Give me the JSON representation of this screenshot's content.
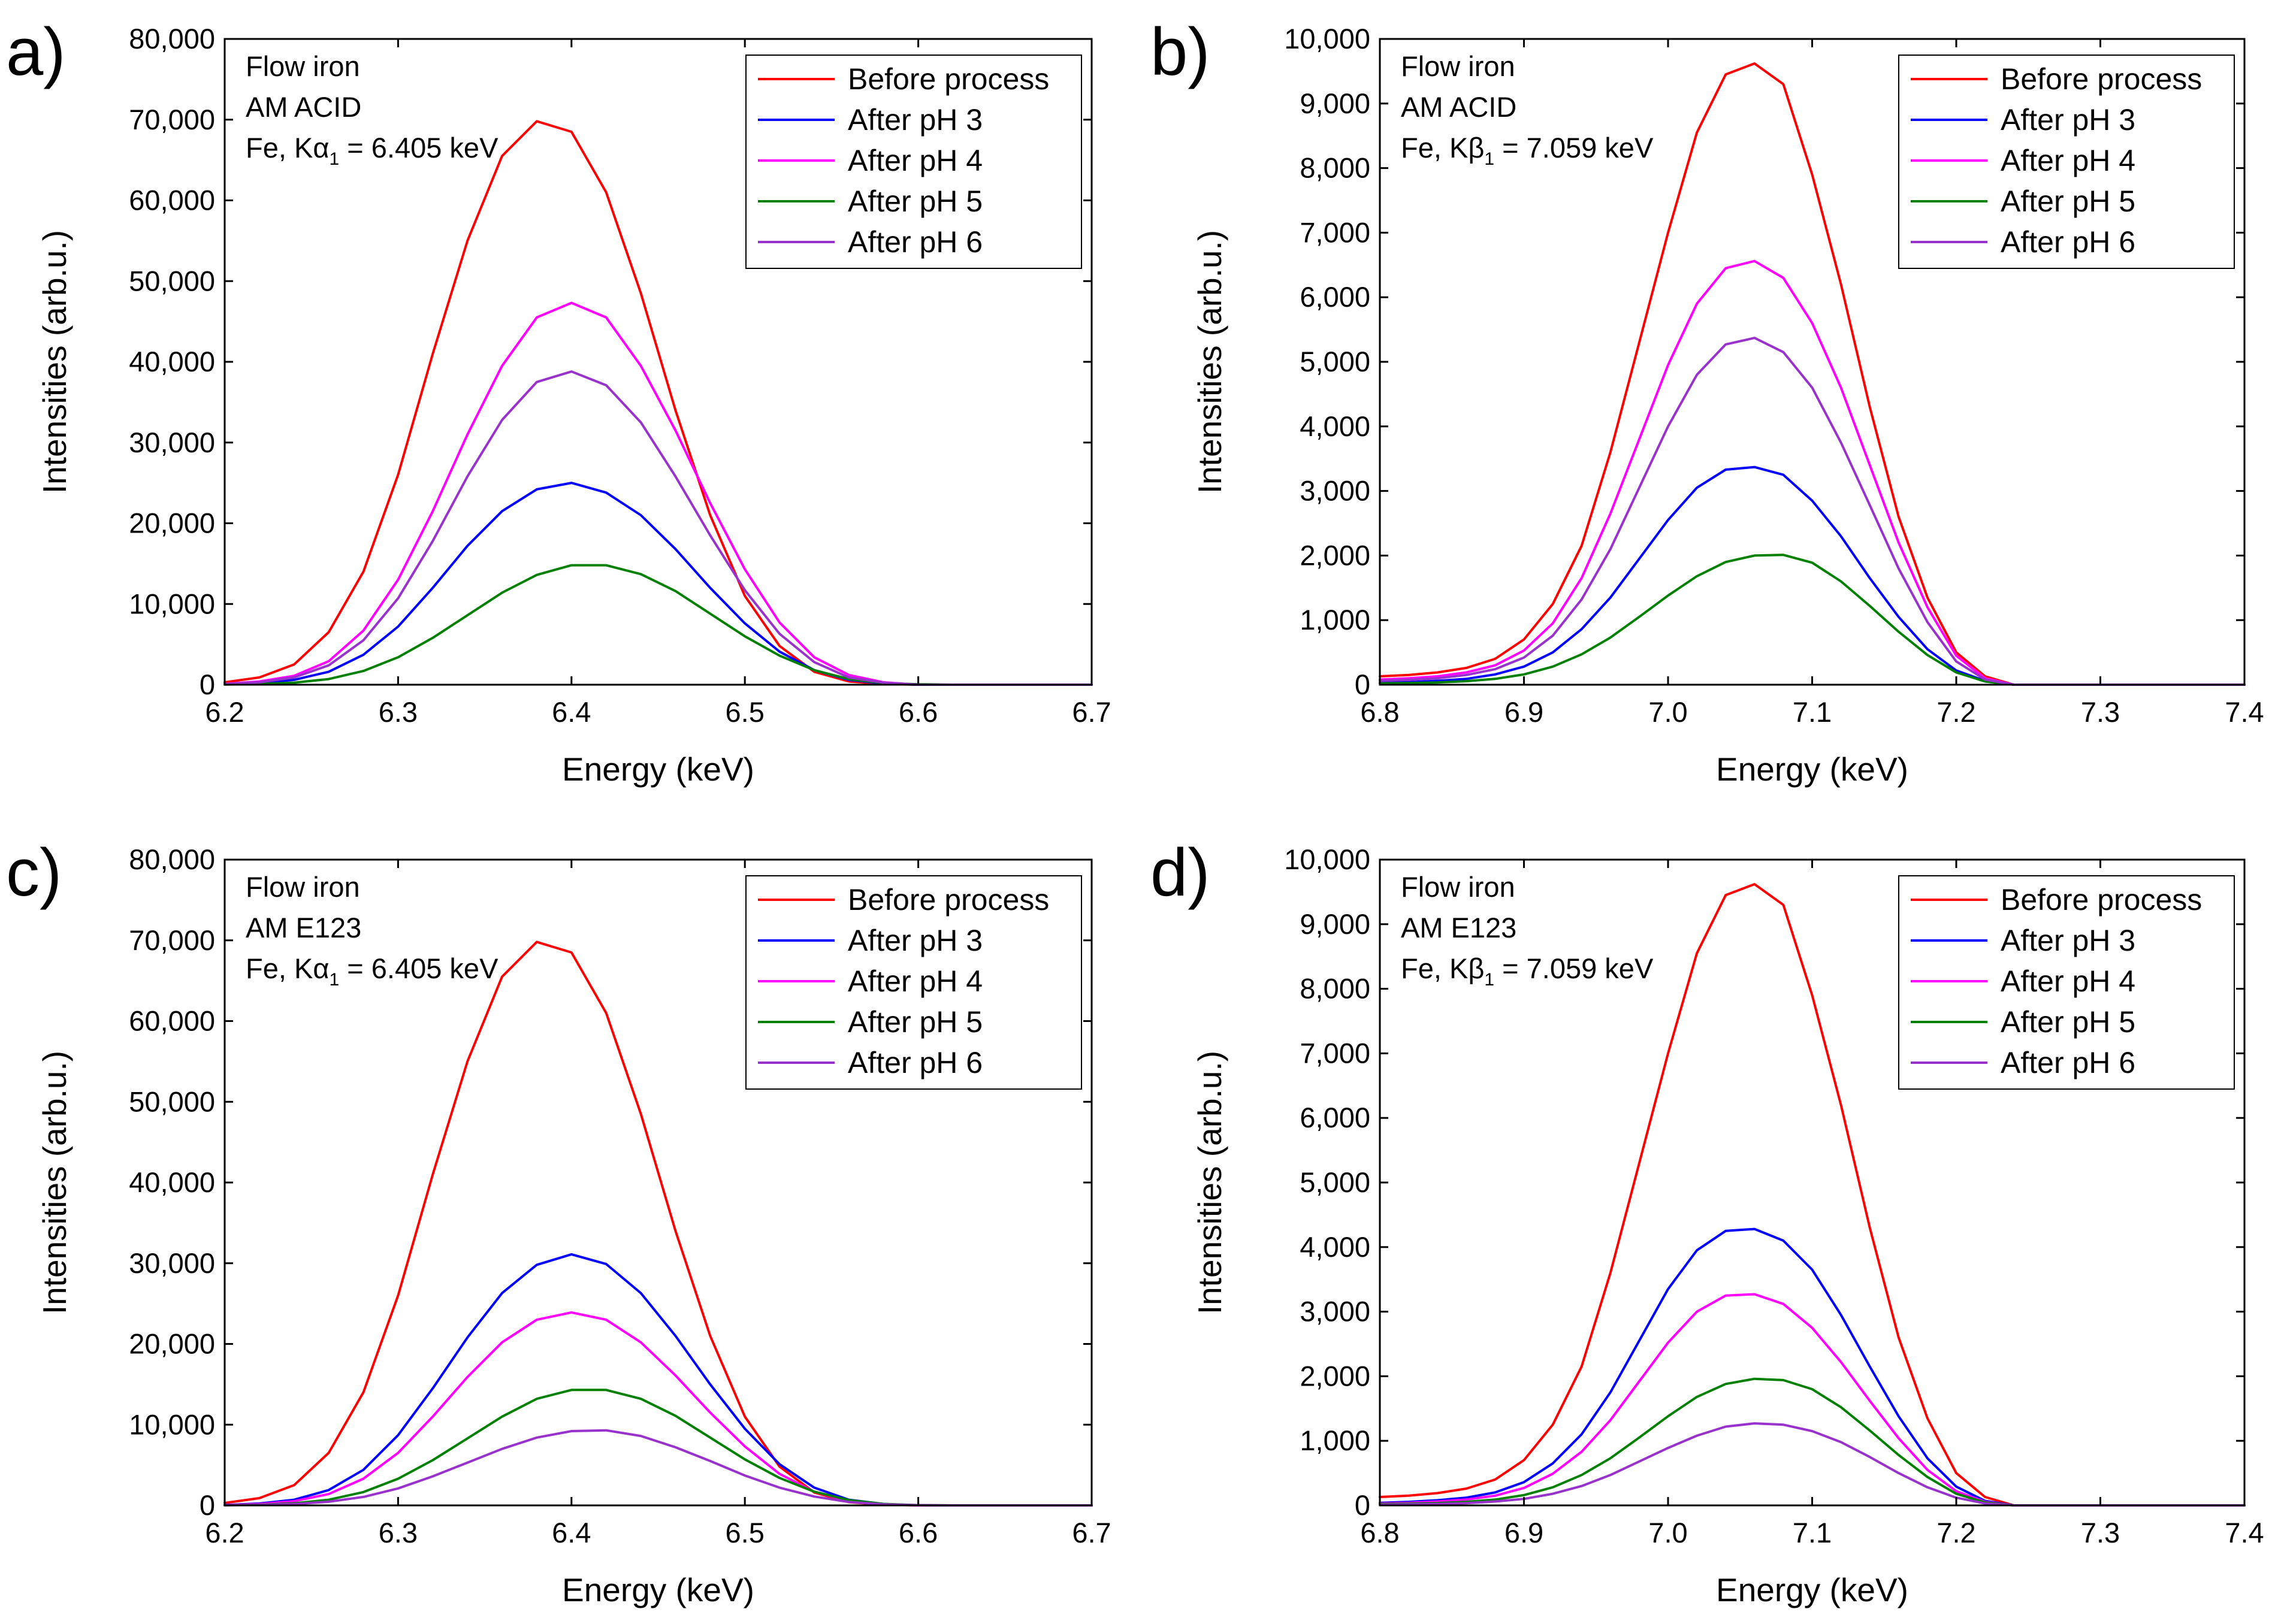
{
  "chart_data": [
    {
      "panel": "a)",
      "type": "line",
      "xlabel": "Energy (keV)",
      "ylabel": "Intensities (arb.u.)",
      "xlim": [
        6.2,
        6.7
      ],
      "ylim": [
        0,
        80000
      ],
      "xticks": [
        6.2,
        6.3,
        6.4,
        6.5,
        6.6,
        6.7
      ],
      "xtick_labels": [
        "6.2",
        "6.3",
        "6.4",
        "6.5",
        "6.6",
        "6.7"
      ],
      "yticks": [
        0,
        10000,
        20000,
        30000,
        40000,
        50000,
        60000,
        70000,
        80000
      ],
      "ytick_labels": [
        "0",
        "10,000",
        "20,000",
        "30,000",
        "40,000",
        "50,000",
        "60,000",
        "70,000",
        "80,000"
      ],
      "annotation": {
        "line1": "Flow iron",
        "line2": "AM ACID",
        "line3_prefix": "Fe, K",
        "line3_symbol": "α",
        "line3_sub": "1",
        "line3_suffix": " = 6.405 keV"
      },
      "legend_position": "top-right",
      "x": [
        6.2,
        6.22,
        6.24,
        6.26,
        6.28,
        6.3,
        6.32,
        6.34,
        6.36,
        6.38,
        6.4,
        6.42,
        6.44,
        6.46,
        6.48,
        6.5,
        6.52,
        6.54,
        6.56,
        6.58,
        6.6,
        6.62,
        6.64,
        6.66,
        6.68,
        6.7
      ],
      "series": [
        {
          "name": "Before process",
          "color": "#ff0000",
          "values": [
            300,
            900,
            2500,
            6500,
            14000,
            26000,
            41000,
            55000,
            65500,
            69800,
            68500,
            61000,
            48500,
            34000,
            21000,
            11000,
            4800,
            1600,
            400,
            100,
            0,
            0,
            0,
            0,
            0,
            0
          ]
        },
        {
          "name": "After pH 3",
          "color": "#0000ff",
          "values": [
            50,
            200,
            600,
            1600,
            3700,
            7200,
            12000,
            17200,
            21500,
            24200,
            25000,
            23800,
            21000,
            16800,
            12000,
            7600,
            4100,
            1800,
            600,
            150,
            0,
            0,
            0,
            0,
            0,
            0
          ]
        },
        {
          "name": "After pH 4",
          "color": "#ff00ff",
          "values": [
            100,
            400,
            1100,
            2900,
            6700,
            13000,
            21500,
            31000,
            39500,
            45500,
            47300,
            45500,
            39500,
            31500,
            22500,
            14300,
            7700,
            3400,
            1200,
            300,
            0,
            0,
            0,
            0,
            0,
            0
          ]
        },
        {
          "name": "After pH 5",
          "color": "#008000",
          "values": [
            20,
            80,
            250,
            700,
            1700,
            3400,
            5800,
            8600,
            11400,
            13600,
            14800,
            14800,
            13700,
            11600,
            8800,
            6000,
            3600,
            1800,
            700,
            200,
            50,
            0,
            0,
            0,
            0,
            0
          ]
        },
        {
          "name": "After pH 6",
          "color": "#9932cc",
          "values": [
            80,
            300,
            900,
            2400,
            5500,
            10700,
            17800,
            25800,
            32800,
            37500,
            38800,
            37100,
            32500,
            25800,
            18500,
            11700,
            6300,
            2800,
            900,
            250,
            0,
            0,
            0,
            0,
            0,
            0
          ]
        }
      ]
    },
    {
      "panel": "b)",
      "type": "line",
      "xlabel": "Energy (keV)",
      "ylabel": "Intensities (arb.u.)",
      "xlim": [
        6.8,
        7.4
      ],
      "ylim": [
        0,
        10000
      ],
      "xticks": [
        6.8,
        6.9,
        7.0,
        7.1,
        7.2,
        7.3,
        7.4
      ],
      "xtick_labels": [
        "6.8",
        "6.9",
        "7.0",
        "7.1",
        "7.2",
        "7.3",
        "7.4"
      ],
      "yticks": [
        0,
        1000,
        2000,
        3000,
        4000,
        5000,
        6000,
        7000,
        8000,
        9000,
        10000
      ],
      "ytick_labels": [
        "0",
        "1,000",
        "2,000",
        "3,000",
        "4,000",
        "5,000",
        "6,000",
        "7,000",
        "8,000",
        "9,000",
        "10,000"
      ],
      "annotation": {
        "line1": "Flow iron",
        "line2": "AM ACID",
        "line3_prefix": "Fe, K",
        "line3_symbol": "β",
        "line3_sub": "1",
        "line3_suffix": " = 7.059 keV"
      },
      "legend_position": "top-right",
      "x": [
        6.8,
        6.82,
        6.84,
        6.86,
        6.88,
        6.9,
        6.92,
        6.94,
        6.96,
        6.98,
        7.0,
        7.02,
        7.04,
        7.06,
        7.08,
        7.1,
        7.12,
        7.14,
        7.16,
        7.18,
        7.2,
        7.22,
        7.24,
        7.26,
        7.3,
        7.35,
        7.4
      ],
      "series": [
        {
          "name": "Before process",
          "color": "#ff0000",
          "values": [
            130,
            150,
            190,
            260,
            400,
            700,
            1250,
            2150,
            3600,
            5300,
            7000,
            8550,
            9450,
            9620,
            9300,
            7900,
            6200,
            4300,
            2600,
            1350,
            500,
            130,
            0,
            0,
            0,
            0,
            0
          ]
        },
        {
          "name": "After pH 3",
          "color": "#0000ff",
          "values": [
            30,
            40,
            60,
            90,
            160,
            280,
            500,
            860,
            1350,
            1950,
            2550,
            3050,
            3330,
            3370,
            3250,
            2850,
            2300,
            1650,
            1050,
            550,
            220,
            60,
            0,
            0,
            0,
            0,
            0
          ]
        },
        {
          "name": "After pH 4",
          "color": "#ff00ff",
          "values": [
            80,
            100,
            130,
            190,
            300,
            530,
            950,
            1650,
            2650,
            3800,
            4950,
            5900,
            6450,
            6560,
            6300,
            5600,
            4600,
            3400,
            2200,
            1200,
            450,
            100,
            0,
            0,
            0,
            0,
            0
          ]
        },
        {
          "name": "After pH 5",
          "color": "#008000",
          "values": [
            20,
            25,
            35,
            55,
            90,
            160,
            280,
            470,
            730,
            1050,
            1380,
            1680,
            1900,
            2000,
            2010,
            1890,
            1600,
            1220,
            820,
            460,
            190,
            50,
            0,
            0,
            0,
            0,
            0
          ]
        },
        {
          "name": "After pH 6",
          "color": "#9932cc",
          "values": [
            60,
            75,
            100,
            150,
            240,
            420,
            760,
            1320,
            2100,
            3050,
            4000,
            4800,
            5270,
            5370,
            5150,
            4600,
            3750,
            2780,
            1800,
            970,
            360,
            80,
            0,
            0,
            0,
            0,
            0
          ]
        }
      ]
    },
    {
      "panel": "c)",
      "type": "line",
      "xlabel": "Energy (keV)",
      "ylabel": "Intensities (arb.u.)",
      "xlim": [
        6.2,
        6.7
      ],
      "ylim": [
        0,
        80000
      ],
      "xticks": [
        6.2,
        6.3,
        6.4,
        6.5,
        6.6,
        6.7
      ],
      "xtick_labels": [
        "6.2",
        "6.3",
        "6.4",
        "6.5",
        "6.6",
        "6.7"
      ],
      "yticks": [
        0,
        10000,
        20000,
        30000,
        40000,
        50000,
        60000,
        70000,
        80000
      ],
      "ytick_labels": [
        "0",
        "10,000",
        "20,000",
        "30,000",
        "40,000",
        "50,000",
        "60,000",
        "70,000",
        "80,000"
      ],
      "annotation": {
        "line1": "Flow iron",
        "line2": "AM E123",
        "line3_prefix": "Fe, K",
        "line3_symbol": "α",
        "line3_sub": "1",
        "line3_suffix": " = 6.405 keV"
      },
      "legend_position": "top-right",
      "x": [
        6.2,
        6.22,
        6.24,
        6.26,
        6.28,
        6.3,
        6.32,
        6.34,
        6.36,
        6.38,
        6.4,
        6.42,
        6.44,
        6.46,
        6.48,
        6.5,
        6.52,
        6.54,
        6.56,
        6.58,
        6.6,
        6.62,
        6.64,
        6.66,
        6.68,
        6.7
      ],
      "series": [
        {
          "name": "Before process",
          "color": "#ff0000",
          "values": [
            300,
            900,
            2500,
            6500,
            14000,
            26000,
            41000,
            55000,
            65500,
            69800,
            68500,
            61000,
            48500,
            34000,
            21000,
            11000,
            4800,
            1600,
            400,
            100,
            0,
            0,
            0,
            0,
            0,
            0
          ]
        },
        {
          "name": "After pH 3",
          "color": "#0000ff",
          "values": [
            60,
            230,
            700,
            1900,
            4400,
            8700,
            14500,
            20800,
            26300,
            29800,
            31100,
            29900,
            26300,
            21000,
            15000,
            9500,
            5100,
            2200,
            700,
            180,
            0,
            0,
            0,
            0,
            0,
            0
          ]
        },
        {
          "name": "After pH 4",
          "color": "#ff00ff",
          "values": [
            40,
            170,
            520,
            1400,
            3300,
            6500,
            11000,
            15900,
            20200,
            23000,
            23900,
            23000,
            20200,
            16100,
            11500,
            7300,
            3900,
            1700,
            550,
            140,
            0,
            0,
            0,
            0,
            0,
            0
          ]
        },
        {
          "name": "After pH 5",
          "color": "#008000",
          "values": [
            20,
            80,
            250,
            700,
            1650,
            3300,
            5600,
            8300,
            11000,
            13200,
            14300,
            14300,
            13200,
            11100,
            8400,
            5700,
            3400,
            1700,
            650,
            180,
            40,
            0,
            0,
            0,
            0,
            0
          ]
        },
        {
          "name": "After pH 6",
          "color": "#9932cc",
          "values": [
            15,
            50,
            160,
            450,
            1050,
            2100,
            3600,
            5300,
            7000,
            8400,
            9200,
            9300,
            8600,
            7200,
            5500,
            3700,
            2200,
            1100,
            420,
            120,
            30,
            0,
            0,
            0,
            0,
            0
          ]
        }
      ]
    },
    {
      "panel": "d)",
      "type": "line",
      "xlabel": "Energy (keV)",
      "ylabel": "Intensities (arb.u.)",
      "xlim": [
        6.8,
        7.4
      ],
      "ylim": [
        0,
        10000
      ],
      "xticks": [
        6.8,
        6.9,
        7.0,
        7.1,
        7.2,
        7.3,
        7.4
      ],
      "xtick_labels": [
        "6.8",
        "6.9",
        "7.0",
        "7.1",
        "7.2",
        "7.3",
        "7.4"
      ],
      "yticks": [
        0,
        1000,
        2000,
        3000,
        4000,
        5000,
        6000,
        7000,
        8000,
        9000,
        10000
      ],
      "ytick_labels": [
        "0",
        "1,000",
        "2,000",
        "3,000",
        "4,000",
        "5,000",
        "6,000",
        "7,000",
        "8,000",
        "9,000",
        "10,000"
      ],
      "annotation": {
        "line1": "Flow iron",
        "line2": "AM E123",
        "line3_prefix": "Fe, K",
        "line3_symbol": "β",
        "line3_sub": "1",
        "line3_suffix": " = 7.059 keV"
      },
      "legend_position": "top-right",
      "x": [
        6.8,
        6.82,
        6.84,
        6.86,
        6.88,
        6.9,
        6.92,
        6.94,
        6.96,
        6.98,
        7.0,
        7.02,
        7.04,
        7.06,
        7.08,
        7.1,
        7.12,
        7.14,
        7.16,
        7.18,
        7.2,
        7.22,
        7.24,
        7.26,
        7.3,
        7.35,
        7.4
      ],
      "series": [
        {
          "name": "Before process",
          "color": "#ff0000",
          "values": [
            130,
            150,
            190,
            260,
            400,
            700,
            1250,
            2150,
            3600,
            5300,
            7000,
            8550,
            9450,
            9620,
            9300,
            7900,
            6200,
            4300,
            2600,
            1350,
            500,
            130,
            0,
            0,
            0,
            0,
            0
          ]
        },
        {
          "name": "After pH 3",
          "color": "#0000ff",
          "values": [
            40,
            55,
            80,
            120,
            200,
            360,
            650,
            1100,
            1750,
            2550,
            3350,
            3950,
            4250,
            4280,
            4100,
            3650,
            2950,
            2150,
            1380,
            730,
            290,
            70,
            0,
            0,
            0,
            0,
            0
          ]
        },
        {
          "name": "After pH 4",
          "color": "#ff00ff",
          "values": [
            30,
            40,
            60,
            90,
            150,
            270,
            490,
            830,
            1320,
            1920,
            2520,
            3000,
            3250,
            3270,
            3120,
            2750,
            2220,
            1620,
            1040,
            550,
            220,
            55,
            0,
            0,
            0,
            0,
            0
          ]
        },
        {
          "name": "After pH 5",
          "color": "#008000",
          "values": [
            20,
            25,
            35,
            55,
            90,
            160,
            280,
            470,
            730,
            1050,
            1380,
            1680,
            1880,
            1960,
            1940,
            1800,
            1520,
            1160,
            780,
            440,
            180,
            45,
            0,
            0,
            0,
            0,
            0
          ]
        },
        {
          "name": "After pH 6",
          "color": "#9932cc",
          "values": [
            10,
            15,
            22,
            35,
            60,
            100,
            180,
            300,
            470,
            680,
            890,
            1080,
            1220,
            1270,
            1250,
            1150,
            980,
            750,
            500,
            280,
            120,
            30,
            0,
            0,
            0,
            0,
            0
          ]
        }
      ]
    }
  ]
}
